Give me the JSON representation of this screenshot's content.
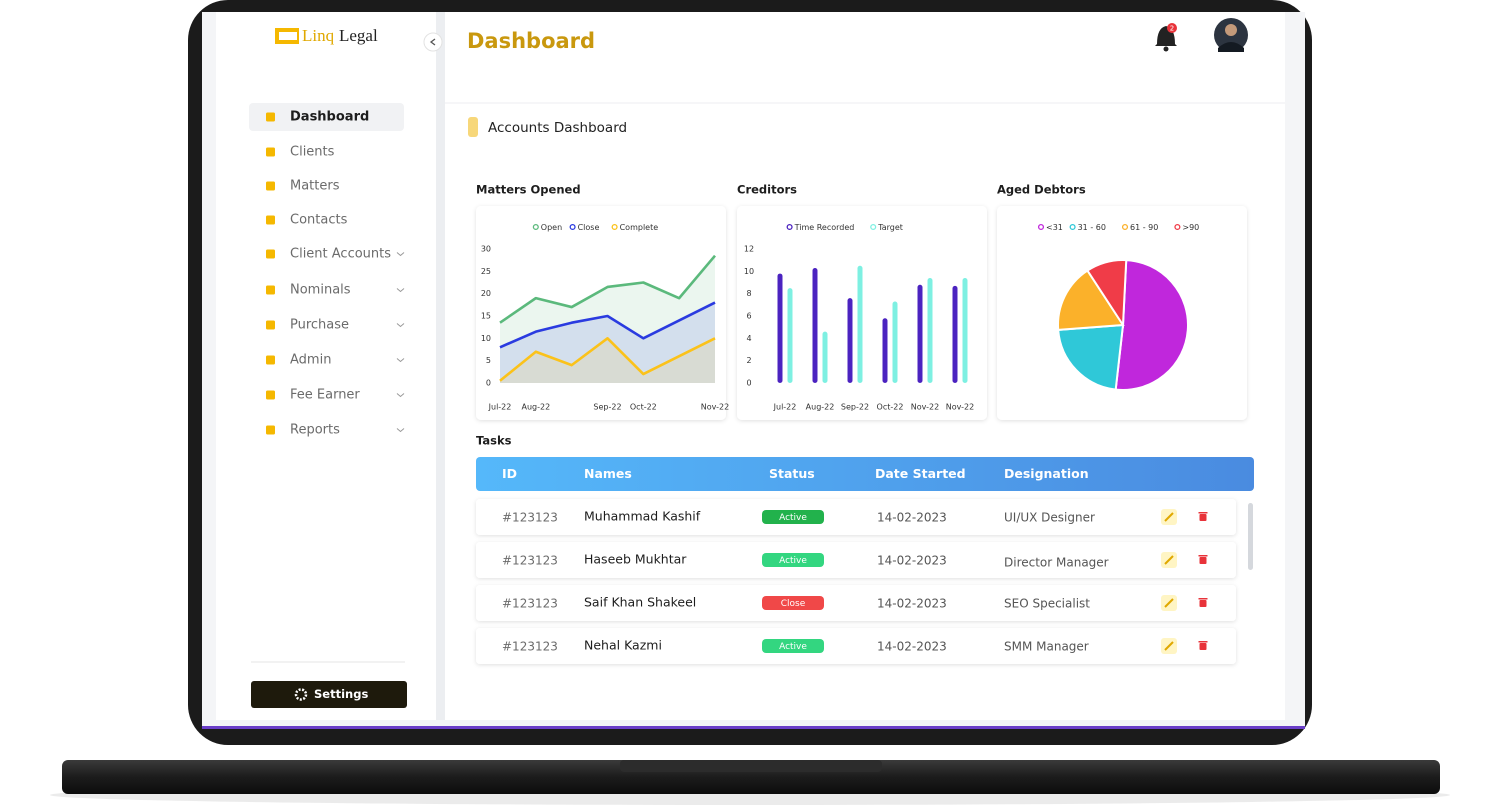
{
  "brand": {
    "first": "Linq",
    "second": "Legal"
  },
  "page_title": "Dashboard",
  "notification_count": 2,
  "nav": [
    "Dashboard",
    "Clients",
    "Matters",
    "Contacts",
    "Client Accounts",
    "Nominals",
    "Purchase",
    "Admin",
    "Fee Earner",
    "Reports"
  ],
  "settings": "Settings",
  "section_title": "Accounts Dashboard",
  "charts": [
    {
      "type": "line",
      "title": "Matters Opened",
      "categories": [
        "Jul-22",
        "Aug-22",
        null,
        "Sep-22",
        "Oct-22",
        null,
        "Nov-22"
      ],
      "series": [
        {
          "name": "Open",
          "color": "#5bb97c",
          "values": [
            13.5,
            19,
            17,
            21.5,
            22.5,
            19,
            28.5
          ]
        },
        {
          "name": "Close",
          "color": "#2a3be0",
          "values": [
            8,
            11.5,
            13.5,
            15,
            10,
            14,
            18
          ]
        },
        {
          "name": "Complete",
          "color": "#fbc21a",
          "values": [
            0.5,
            7,
            4,
            10,
            2,
            6,
            10
          ]
        }
      ],
      "ylim": [
        0,
        30
      ],
      "yticks": [
        0,
        5,
        10,
        15,
        20,
        25,
        30
      ]
    },
    {
      "type": "bar",
      "title": "Creditors",
      "categories": [
        "Jul-22",
        "Aug-22",
        "Sep-22",
        "Oct-22",
        "Nov-22",
        "Nov-22"
      ],
      "series": [
        {
          "name": "Time Recorded",
          "color": "#4b23c0",
          "values": [
            9.8,
            10.3,
            7.6,
            5.8,
            8.8,
            8.7
          ]
        },
        {
          "name": "Target",
          "color": "#7ef0e2",
          "values": [
            8.5,
            4.6,
            10.5,
            7.3,
            9.4,
            9.4
          ]
        }
      ],
      "ylim": [
        0,
        12
      ],
      "yticks": [
        0,
        2,
        4,
        6,
        8,
        10,
        12
      ]
    },
    {
      "type": "pie",
      "title": "Aged Debtors",
      "categories": [
        "<31",
        "31 - 60",
        "61 - 90",
        ">90"
      ],
      "values": [
        51,
        22,
        17,
        10
      ],
      "colors": [
        "#c027dc",
        "#2fc8d8",
        "#fbb12a",
        "#f03c48"
      ]
    }
  ],
  "tasks": {
    "title": "Tasks",
    "columns": [
      "ID",
      "Names",
      "Status",
      "Date Started",
      "Designation"
    ],
    "rows": [
      [
        "#123123",
        "Muhammad Kashif",
        "Active",
        "14-02-2023",
        "UI/UX Designer"
      ],
      [
        "#123123",
        "Haseeb Mukhtar",
        "Active",
        "14-02-2023",
        "Director Manager"
      ],
      [
        "#123123",
        "Saif Khan Shakeel",
        "Close",
        "14-02-2023",
        "SEO Specialist"
      ],
      [
        "#123123",
        "Nehal Kazmi",
        "Active",
        "14-02-2023",
        "SMM Manager"
      ]
    ],
    "status_colors": [
      "#22b24c",
      "#33d680",
      "#f04848",
      "#33d680"
    ]
  }
}
